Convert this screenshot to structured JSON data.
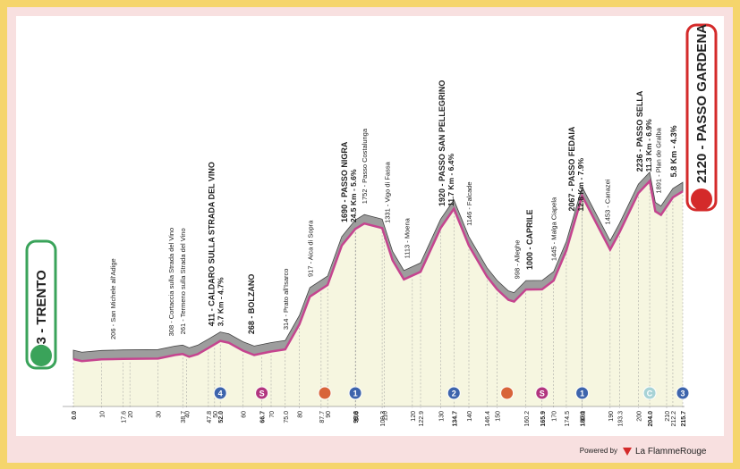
{
  "chart_data": {
    "type": "elevation-profile",
    "start": "203 - TRENTO",
    "finish": "2120 - PASSO GARDENA",
    "x": [
      0,
      3,
      10,
      17.6,
      30,
      36,
      38.7,
      41,
      44,
      47.8,
      52,
      55,
      60,
      64,
      66.7,
      70,
      75,
      80,
      83.7,
      90,
      95,
      99.8,
      103,
      109.3,
      113,
      117,
      122.9,
      130,
      134.7,
      140,
      146.4,
      150,
      154,
      156,
      160.2,
      165.9,
      170,
      174.5,
      180.1,
      186,
      190,
      193.3,
      200,
      204,
      206,
      208,
      212.2,
      215.7
    ],
    "values": [
      203,
      180,
      200,
      206,
      210,
      250,
      261,
      230,
      260,
      330,
      411,
      390,
      300,
      250,
      268,
      290,
      314,
      600,
      917,
      1050,
      1500,
      1690,
      1752,
      1700,
      1331,
      1113,
      1200,
      1700,
      1920,
      1500,
      1146,
      1000,
      880,
      860,
      998,
      1000,
      1100,
      1445,
      2067,
      1700,
      1453,
      1650,
      2100,
      2236,
      1891,
      1850,
      2050,
      2120
    ],
    "color": "#c5448f",
    "shade_color": "#9d9d9d",
    "fill_color": "#f6f6e0",
    "xlim": [
      0,
      215.7
    ],
    "xticks": [
      {
        "value": 0,
        "label": "0.0"
      },
      10,
      17.6,
      20,
      30,
      38.7,
      40,
      47.8,
      50,
      {
        "value": 52,
        "label": "52.0"
      },
      60,
      66.7,
      70,
      {
        "value": 75,
        "label": "75.0"
      },
      80,
      87.7,
      90,
      99.8,
      100,
      109.3,
      110,
      120,
      122.9,
      130,
      134.7,
      140,
      146.4,
      150,
      160.2,
      165.9,
      170,
      174.5,
      180,
      180.1,
      190,
      193.3,
      200,
      {
        "value": 204,
        "label": "204.0"
      },
      210,
      212.2,
      215.7
    ],
    "annotations": [
      {
        "label": "206 - San Michele all'Adige",
        "km": 14,
        "bold": false
      },
      {
        "label": "308 - Cortaccia sulla Strada del Vino",
        "km": 34.5,
        "bold": false
      },
      {
        "label": "261 - Termeno sulla Strada del Vino",
        "km": 38.7,
        "bold": false
      },
      {
        "label": "411 - CALDARO SULLA STRADA DEL VINO",
        "detail": "3.7 Km - 4.7%",
        "km": 49,
        "bold": true
      },
      {
        "label": "268 - BOLZANO",
        "km": 63,
        "bold": true
      },
      {
        "label": "314 - Prato all'Isarco",
        "km": 75,
        "bold": false
      },
      {
        "label": "917 - Aica di Sopra",
        "km": 83.7,
        "bold": false
      },
      {
        "label": "1690 - PASSO NIGRA",
        "detail": "24.5 Km - 5.6%",
        "km": 96,
        "bold": true
      },
      {
        "label": "1752 - Passo Costalunga",
        "km": 103,
        "bold": false
      },
      {
        "label": "1331 - Vigo di Fassa",
        "km": 111,
        "bold": false
      },
      {
        "label": "1113 - Moena",
        "km": 118,
        "bold": false
      },
      {
        "label": "1920 - PASSO SAN PELLEGRINO",
        "detail": "11.7 Km - 6.4%",
        "km": 130.5,
        "bold": true
      },
      {
        "label": "1146 - Falcade",
        "km": 140,
        "bold": false
      },
      {
        "label": "998 - Alleghe",
        "km": 157,
        "bold": false
      },
      {
        "label": "1000 - CAPRILE",
        "km": 161.5,
        "bold": true
      },
      {
        "label": "1445 - Malga Ciapela",
        "km": 170,
        "bold": false
      },
      {
        "label": "2067 - PASSO FEDAIA",
        "detail": "12.8 Km - 7.9%",
        "km": 176.5,
        "bold": true
      },
      {
        "label": "1453 - Canazei",
        "km": 189,
        "bold": false
      },
      {
        "label": "2236 - PASSO SELLA",
        "detail": "11.3 Km - 6.9%",
        "km": 200.5,
        "bold": true
      },
      {
        "label": "1891 - Plan de Gralba",
        "km": 207,
        "bold": false
      },
      {
        "label": "5.8 Km - 4.3%",
        "km": 212.5,
        "bold": true
      }
    ],
    "markers": [
      {
        "km": 52,
        "label": "4",
        "color": "#3d64ac"
      },
      {
        "km": 66.7,
        "label": "S",
        "color": "#b2357f"
      },
      {
        "km": 89,
        "color": "#d8643a",
        "band": true
      },
      {
        "km": 99.8,
        "label": "1",
        "color": "#3d64ac"
      },
      {
        "km": 134.7,
        "label": "2",
        "color": "#3d64ac"
      },
      {
        "km": 153.5,
        "color": "#d8643a",
        "band": true
      },
      {
        "km": 165.9,
        "label": "S",
        "color": "#b2357f"
      },
      {
        "km": 180.1,
        "label": "1",
        "color": "#3d64ac"
      },
      {
        "km": 204,
        "label": "C",
        "color": "#a8d3d6"
      },
      {
        "km": 215.7,
        "label": "3",
        "color": "#3d64ac"
      }
    ],
    "powered_by": "Powered by",
    "brand": "La FlammeRouge"
  }
}
